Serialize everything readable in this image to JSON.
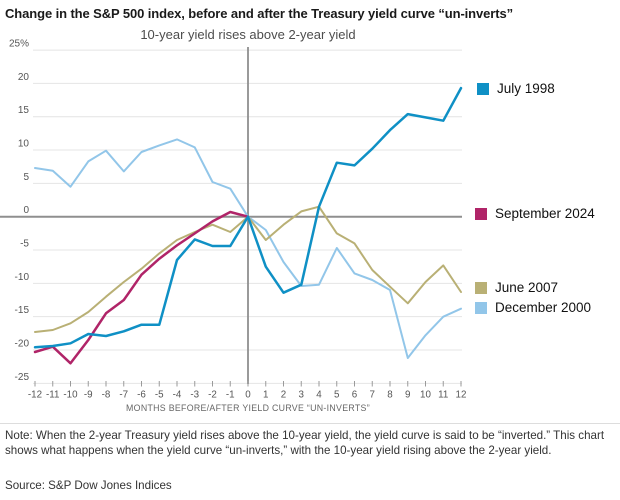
{
  "chart_data": {
    "type": "line",
    "title": "Change in the S&P 500 index, before and after the Treasury yield curve “un-inverts”",
    "subtitle": "10-year yield rises above 2-year yield",
    "xlabel": "MONTHS BEFORE/AFTER YIELD CURVE “UN-INVERTS”",
    "x": [
      -12,
      -11,
      -10,
      -9,
      -8,
      -7,
      -6,
      -5,
      -4,
      -3,
      -2,
      -1,
      0,
      1,
      2,
      3,
      4,
      5,
      6,
      7,
      8,
      9,
      10,
      11,
      12
    ],
    "ylim": [
      -25,
      25
    ],
    "y_ticks": [
      25,
      20,
      15,
      10,
      5,
      0,
      -5,
      -10,
      -15,
      -20,
      -25
    ],
    "y_tick_labels": [
      "25%",
      "20",
      "15",
      "10",
      "5",
      "0",
      "-5",
      "-10",
      "-15",
      "-20",
      "-25"
    ],
    "grid": true,
    "legend_position": "right",
    "event_line_x": 0,
    "series": [
      {
        "name": "December 2000",
        "color": "#92c6e9",
        "values": [
          7.3,
          6.9,
          4.5,
          8.3,
          9.9,
          6.8,
          9.7,
          10.7,
          11.6,
          10.4,
          5.2,
          4.2,
          0,
          -2.0,
          -6.8,
          -10.4,
          -10.2,
          -4.7,
          -8.5,
          -9.5,
          -11.0,
          -21.2,
          -17.8,
          -15.0,
          -13.8
        ]
      },
      {
        "name": "June 2007",
        "color": "#b9b075",
        "values": [
          -17.3,
          -17.0,
          -16.0,
          -14.3,
          -12.0,
          -9.8,
          -7.8,
          -5.5,
          -3.5,
          -2.3,
          -1.2,
          -2.3,
          0,
          -3.5,
          -1.2,
          0.8,
          1.5,
          -2.5,
          -4.0,
          -8.0,
          -10.5,
          -13.0,
          -9.8,
          -7.3,
          -11.3
        ]
      },
      {
        "name": "September 2024",
        "color": "#b02468",
        "values": [
          -20.3,
          -19.5,
          -22.0,
          -18.5,
          -14.5,
          -12.5,
          -8.7,
          -6.3,
          -4.3,
          -2.5,
          -0.7,
          0.7,
          0,
          null,
          null,
          null,
          null,
          null,
          null,
          null,
          null,
          null,
          null,
          null,
          null
        ]
      },
      {
        "name": "July 1998",
        "color": "#0f90c5",
        "values": [
          -19.6,
          -19.4,
          -19.0,
          -17.6,
          -17.9,
          -17.2,
          -16.2,
          -16.2,
          -6.5,
          -3.4,
          -4.4,
          -4.4,
          0,
          -7.5,
          -11.4,
          -10.2,
          1.5,
          8.1,
          7.7,
          10.2,
          13.0,
          15.4,
          14.9,
          14.4,
          19.3
        ]
      }
    ]
  },
  "note": "Note: When the 2-year Treasury yield rises above the 10-year yield, the yield curve is said to be “inverted.” This chart shows what happens when the yield curve “un-inverts,” with the 10-year yield rising above the 2-year yield.",
  "source": "Source: S&P Dow Jones Indices"
}
